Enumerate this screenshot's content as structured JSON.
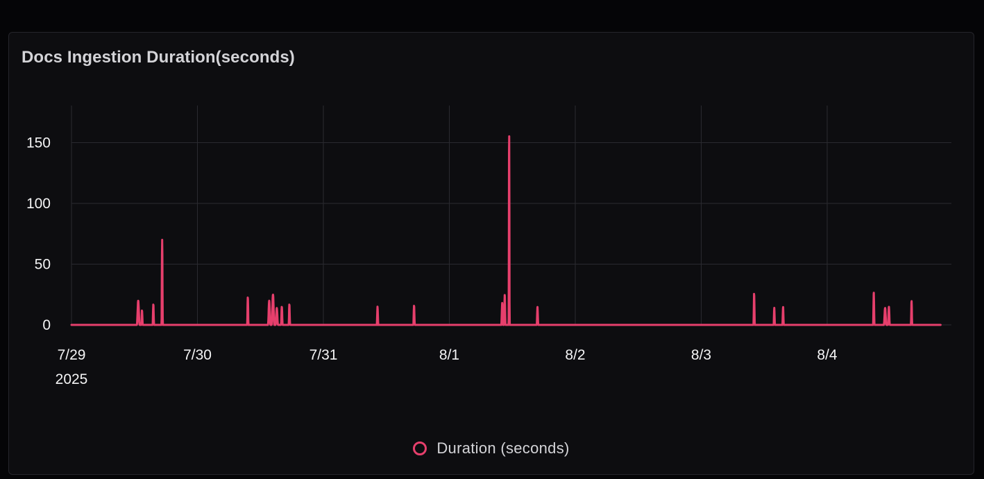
{
  "panel": {
    "title": "Docs Ingestion Duration(seconds)"
  },
  "chart_data": {
    "type": "line",
    "title": "Docs Ingestion Duration(seconds)",
    "xlabel": "",
    "ylabel": "",
    "x_axis": {
      "kind": "time",
      "ticks": [
        {
          "label": "7/29",
          "sublabel": "2025",
          "day": 0
        },
        {
          "label": "7/30",
          "day": 1
        },
        {
          "label": "7/31",
          "day": 2
        },
        {
          "label": "8/1",
          "day": 3
        },
        {
          "label": "8/2",
          "day": 4
        },
        {
          "label": "8/3",
          "day": 5
        },
        {
          "label": "8/4",
          "day": 6
        }
      ],
      "range_days": [
        0,
        6.9
      ]
    },
    "ylim": [
      0,
      180
    ],
    "y_ticks": [
      0,
      50,
      100,
      150
    ],
    "grid": true,
    "legend_position": "bottom-center",
    "series": [
      {
        "name": "Duration (seconds)",
        "color": "#e63f6c",
        "peaks": [
          {
            "day": 0.53,
            "value": 20,
            "width": 0.022
          },
          {
            "day": 0.56,
            "value": 12,
            "width": 0.012
          },
          {
            "day": 0.65,
            "value": 17,
            "width": 0.012
          },
          {
            "day": 0.72,
            "value": 70,
            "width": 0.011
          },
          {
            "day": 1.4,
            "value": 23,
            "width": 0.011
          },
          {
            "day": 1.57,
            "value": 20,
            "width": 0.02
          },
          {
            "day": 1.6,
            "value": 25,
            "width": 0.022
          },
          {
            "day": 1.63,
            "value": 14,
            "width": 0.02
          },
          {
            "day": 1.67,
            "value": 15,
            "width": 0.014
          },
          {
            "day": 1.73,
            "value": 17,
            "width": 0.012
          },
          {
            "day": 2.43,
            "value": 15,
            "width": 0.012
          },
          {
            "day": 2.72,
            "value": 16,
            "width": 0.012
          },
          {
            "day": 3.42,
            "value": 18,
            "width": 0.015
          },
          {
            "day": 3.44,
            "value": 25,
            "width": 0.012
          },
          {
            "day": 3.475,
            "value": 160,
            "width": 0.009
          },
          {
            "day": 3.7,
            "value": 15,
            "width": 0.012
          },
          {
            "day": 5.42,
            "value": 26,
            "width": 0.011
          },
          {
            "day": 5.58,
            "value": 14,
            "width": 0.011
          },
          {
            "day": 5.65,
            "value": 15,
            "width": 0.011
          },
          {
            "day": 6.37,
            "value": 27,
            "width": 0.011
          },
          {
            "day": 6.46,
            "value": 14,
            "width": 0.02
          },
          {
            "day": 6.49,
            "value": 15,
            "width": 0.015
          },
          {
            "day": 6.67,
            "value": 20,
            "width": 0.011
          }
        ]
      }
    ]
  }
}
